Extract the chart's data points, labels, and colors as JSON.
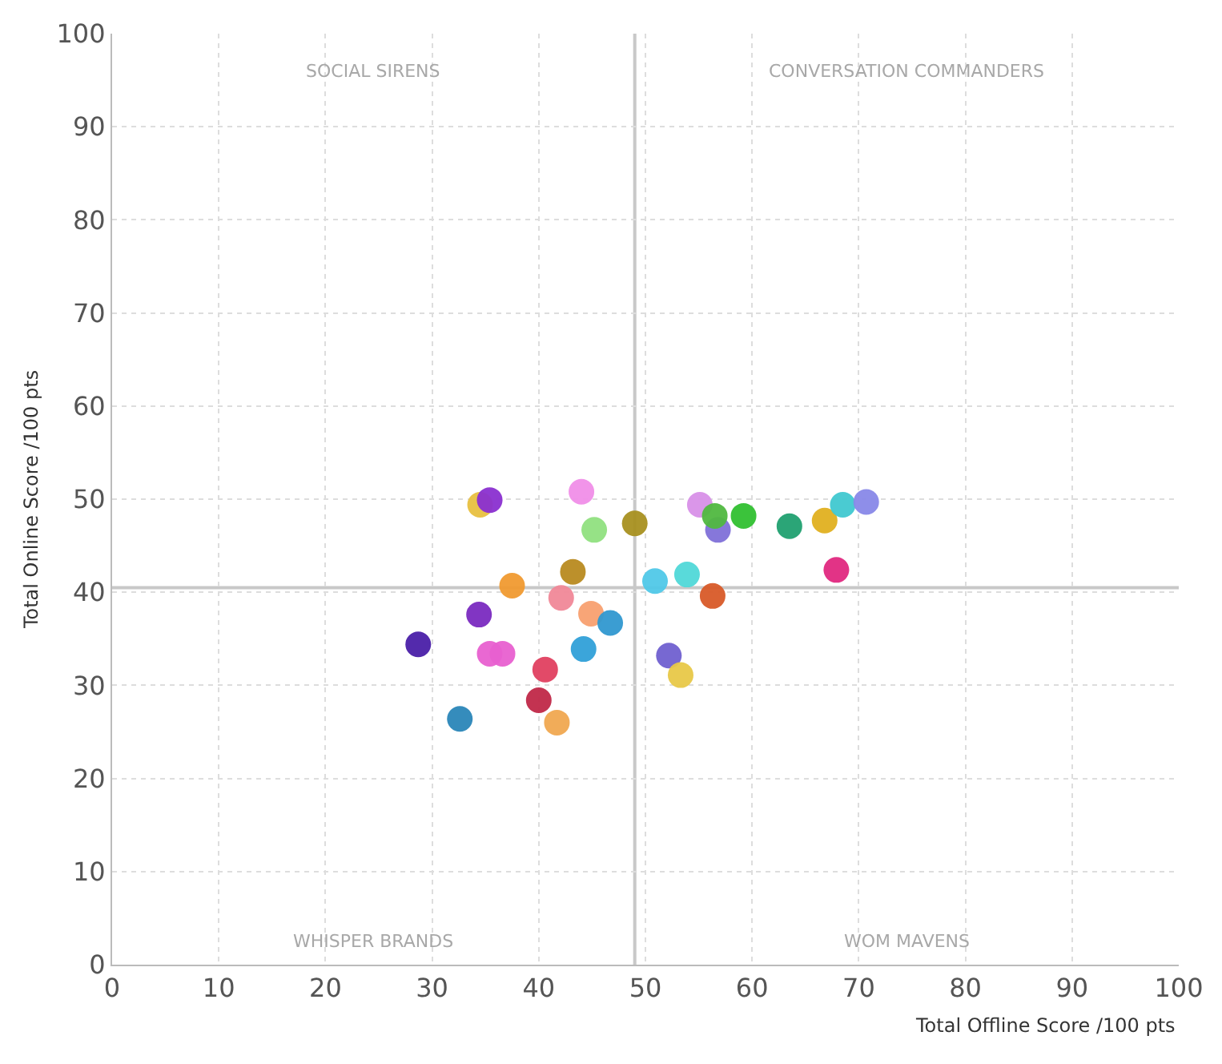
{
  "chart_data": {
    "type": "scatter",
    "xlabel": "Total Offline Score /100 pts",
    "ylabel": "Total Online Score /100 pts",
    "x": [
      28.7,
      32.6,
      34.5,
      35.4,
      34.4,
      35.4,
      36.6,
      37.5,
      40.6,
      40.0,
      41.7,
      42.1,
      43.2,
      44.0,
      44.9,
      44.2,
      45.2,
      46.7,
      49.0,
      50.9,
      53.9,
      56.3,
      52.2,
      53.3,
      55.1,
      56.8,
      56.5,
      59.2,
      63.5,
      66.8,
      68.5,
      70.7,
      67.9
    ],
    "values": [
      34.4,
      26.4,
      49.4,
      49.9,
      37.6,
      33.4,
      33.4,
      40.7,
      31.7,
      28.4,
      26.0,
      39.4,
      42.2,
      50.8,
      37.7,
      33.9,
      46.7,
      36.7,
      47.4,
      41.2,
      41.9,
      39.6,
      33.2,
      31.1,
      49.4,
      46.7,
      48.2,
      48.2,
      47.1,
      47.7,
      49.4,
      49.7,
      42.4
    ],
    "colors": [
      "#4a1fa8",
      "#2a86b8",
      "#e8c040",
      "#8a2fd0",
      "#7a2ac0",
      "#e860d0",
      "#e860d0",
      "#f09a30",
      "#e04060",
      "#c02848",
      "#f0a850",
      "#f08898",
      "#b88a20",
      "#f08ee8",
      "#f8a070",
      "#30a0d8",
      "#90e080",
      "#3098d0",
      "#a89020",
      "#50c8e8",
      "#50d8d8",
      "#d85a28",
      "#7060d0",
      "#e8c848",
      "#d890e8",
      "#8070d8",
      "#50b840",
      "#30c030",
      "#20a070",
      "#e0b020",
      "#40c8d0",
      "#8888e8",
      "#e02880"
    ],
    "xlim": [
      0,
      100
    ],
    "ylim": [
      0,
      100
    ],
    "xticks": [
      0,
      10,
      20,
      30,
      40,
      50,
      60,
      70,
      80,
      90,
      100
    ],
    "yticks": [
      0,
      10,
      20,
      30,
      40,
      50,
      60,
      70,
      80,
      90,
      100
    ],
    "grid": true,
    "marker": "circle",
    "ref_lines": [
      {
        "axis": "x",
        "value": 49,
        "label": null,
        "color": "#c8c8c8"
      },
      {
        "axis": "y",
        "value": 40.5,
        "label": null,
        "color": "#c8c8c8"
      }
    ],
    "annotations": [
      "SOCIAL SIRENS",
      "CONVERSATION COMMANDERS",
      "WHISPER BRANDS",
      "WOM MAVENS"
    ]
  }
}
